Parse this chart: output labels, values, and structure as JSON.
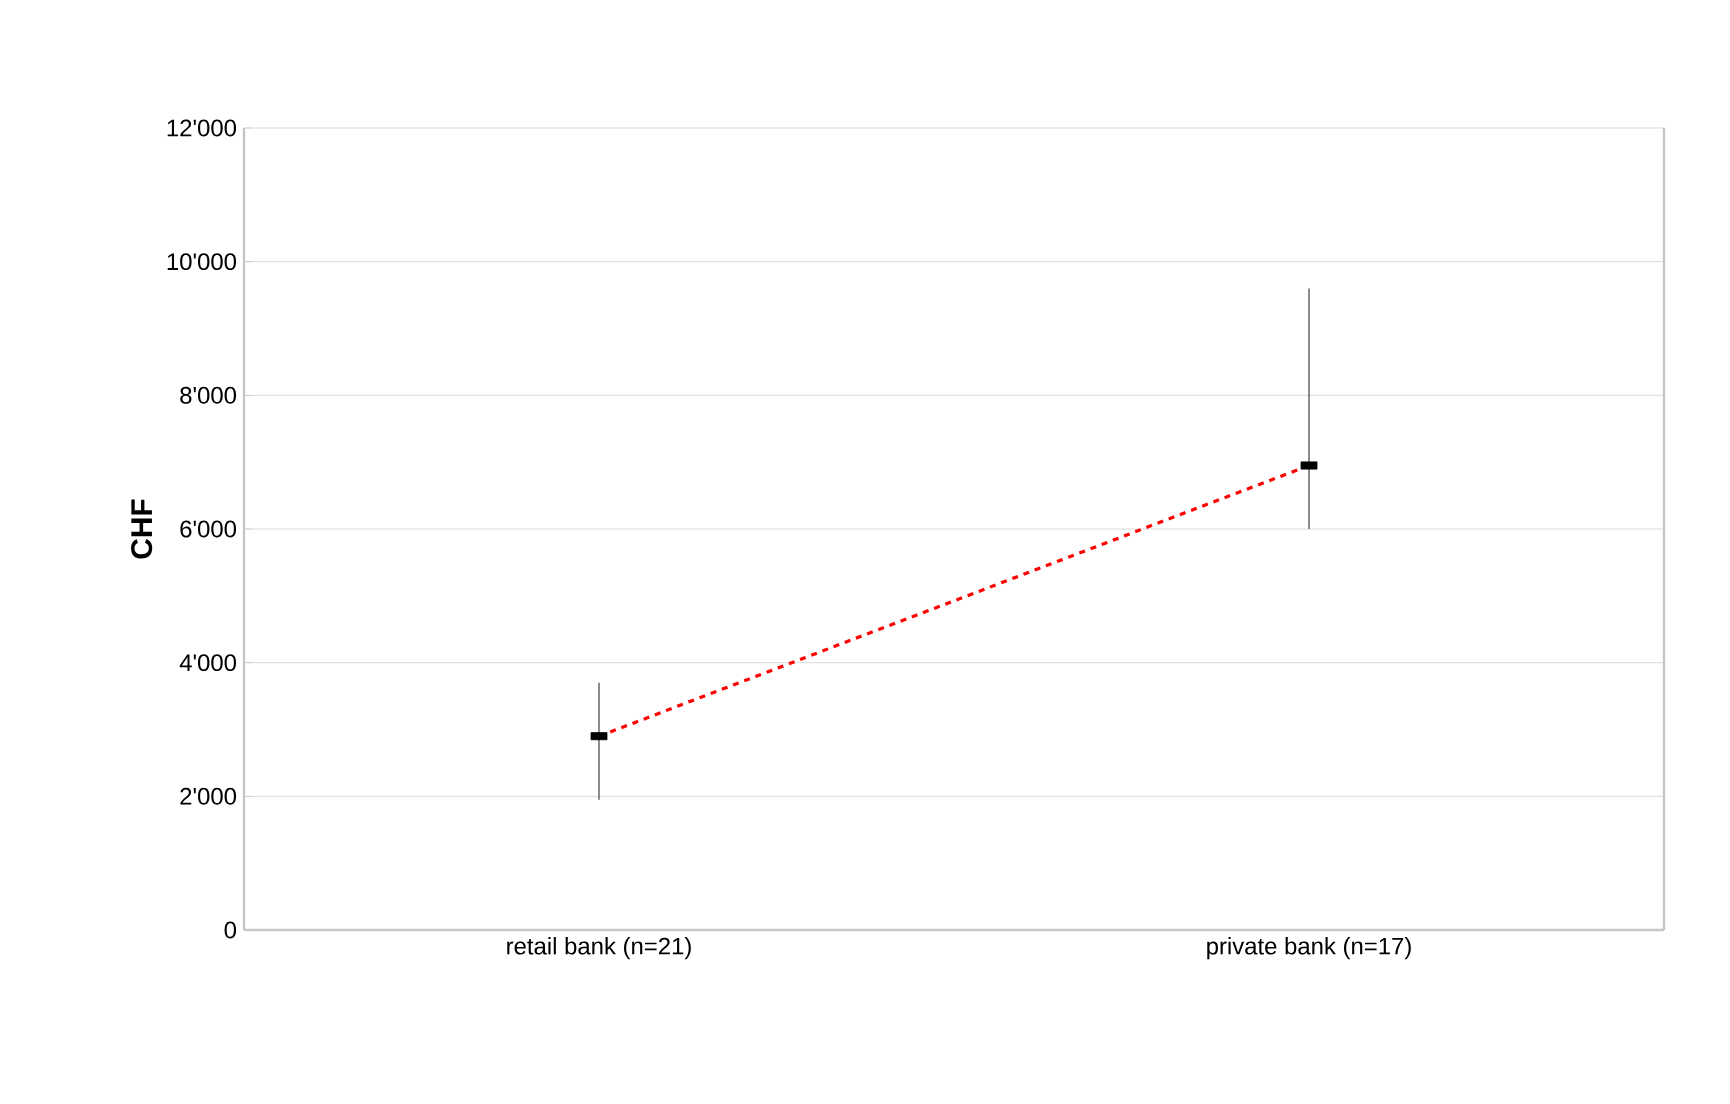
{
  "chart_data": {
    "type": "line",
    "ylabel": "CHF",
    "categories": [
      "retail bank (n=21)",
      "private bank (n=17)"
    ],
    "series": [
      {
        "color": "#ff0000",
        "values": [
          2900,
          6950
        ],
        "errors": [
          [
            1950,
            3700
          ],
          [
            6000,
            9600
          ]
        ]
      }
    ],
    "ylim": [
      0,
      12000
    ],
    "yticks": [
      {
        "value": 0,
        "label": "0"
      },
      {
        "value": 2000,
        "label": "2'000"
      },
      {
        "value": 4000,
        "label": "4'000"
      },
      {
        "value": 6000,
        "label": "6'000"
      },
      {
        "value": 8000,
        "label": "8'000"
      },
      {
        "value": 10000,
        "label": "10'000"
      },
      {
        "value": 12000,
        "label": "12'000"
      }
    ],
    "grid": "y",
    "marker": "square",
    "line_style": "dashed"
  }
}
